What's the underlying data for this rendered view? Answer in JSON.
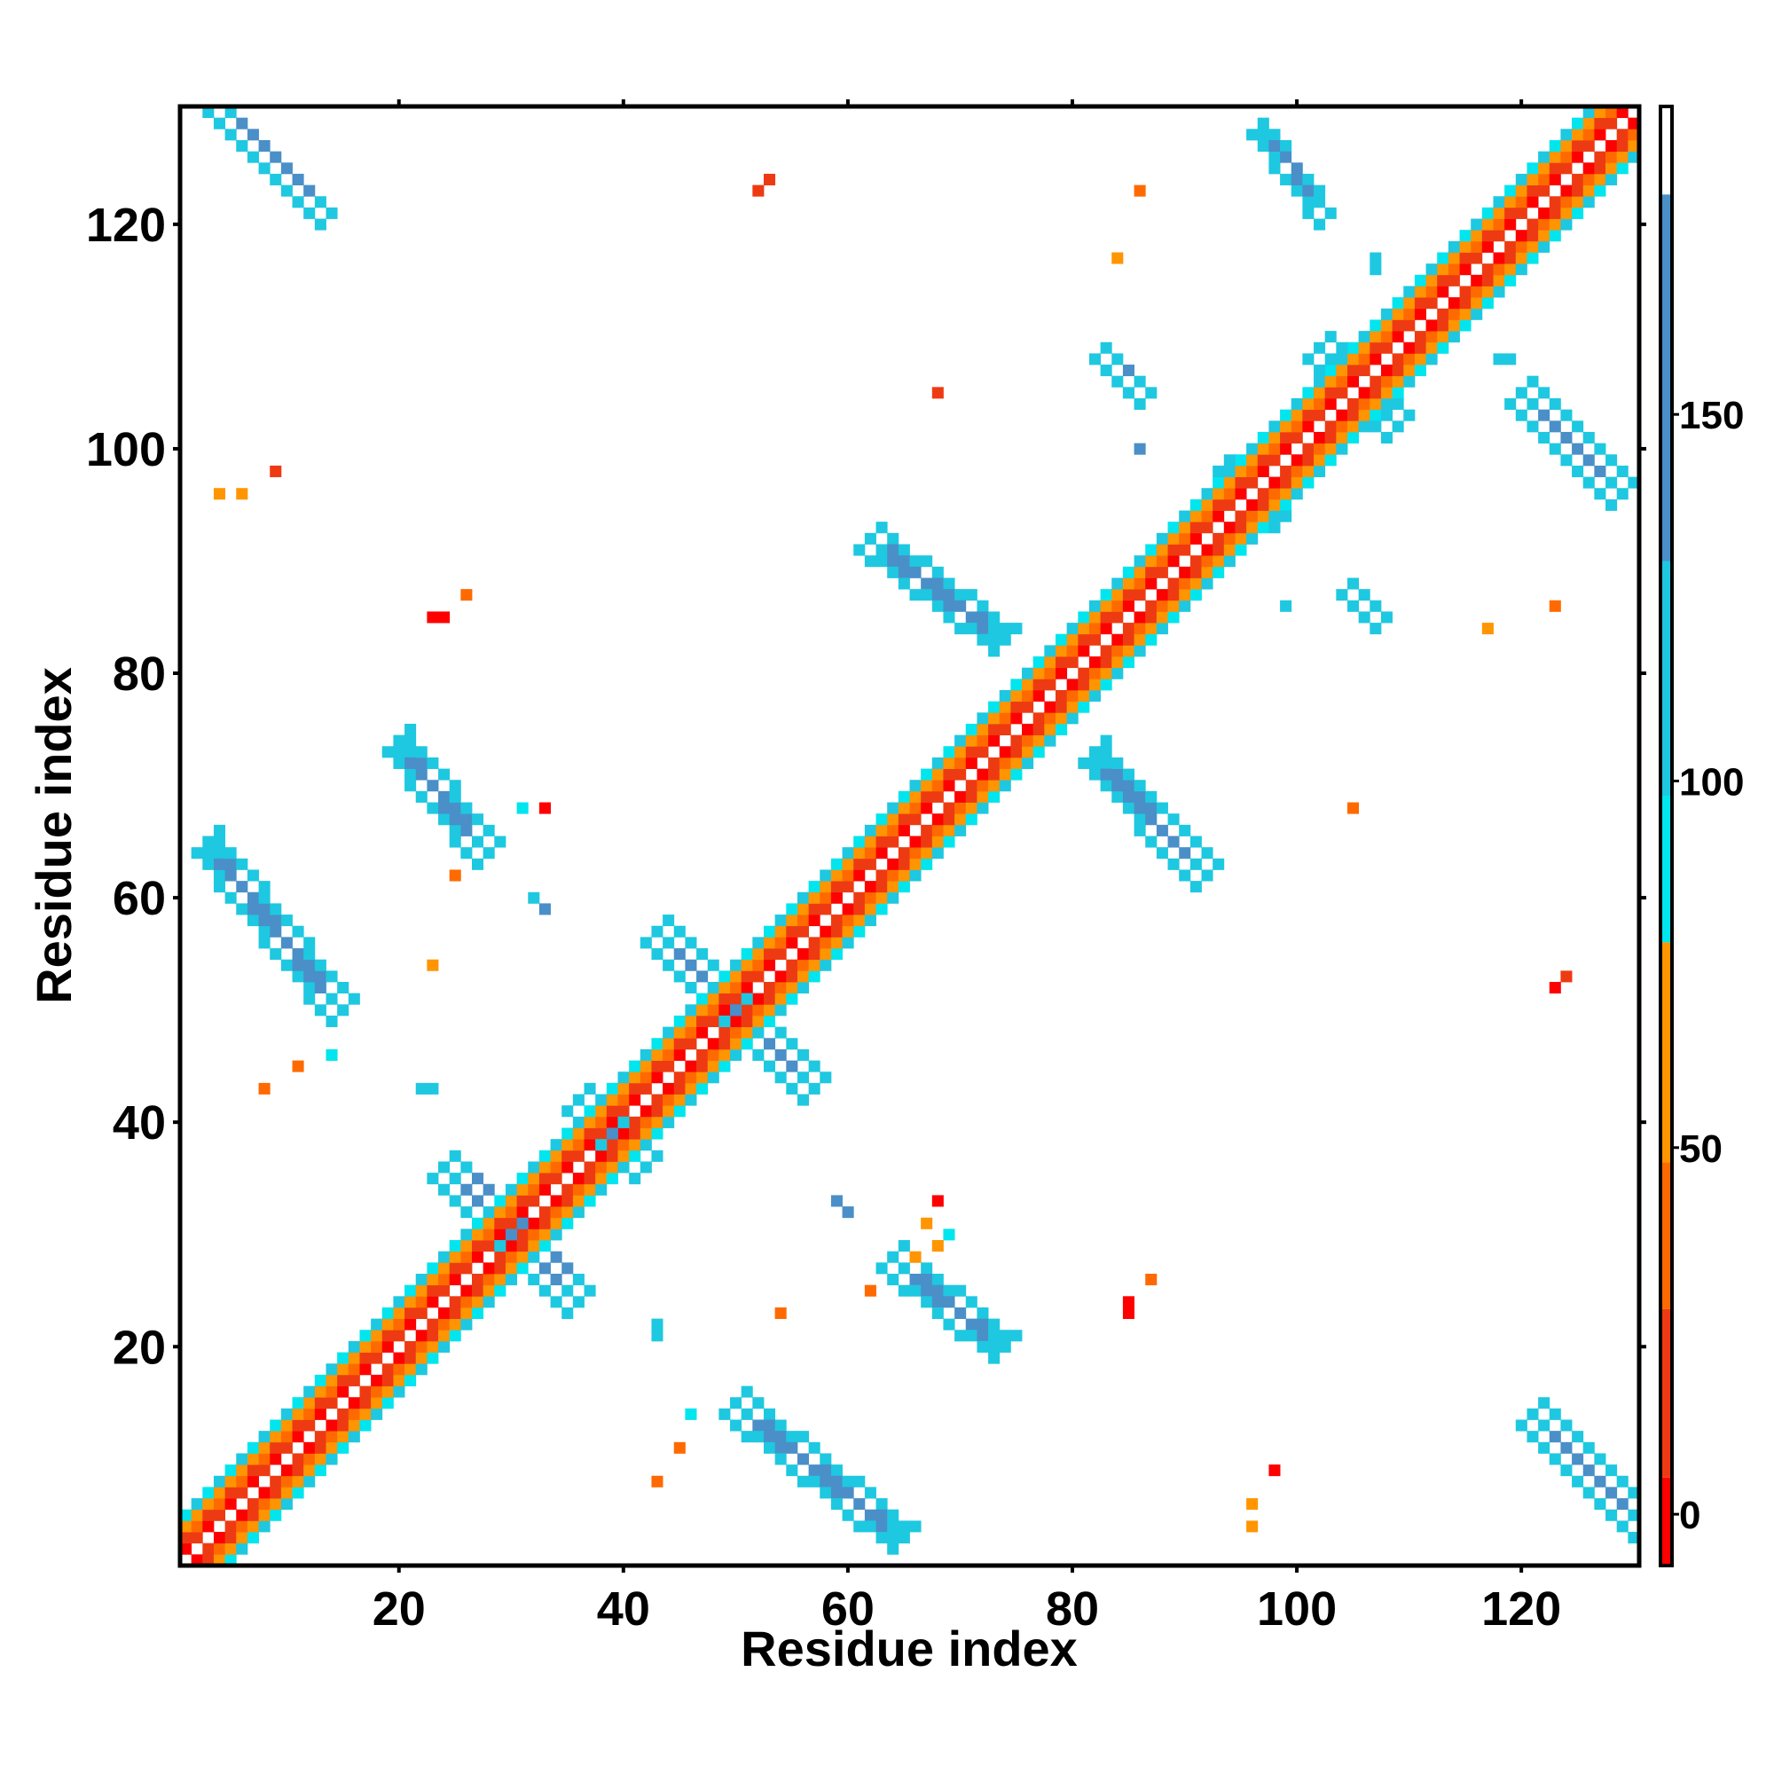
{
  "chart_data": {
    "type": "heatmap",
    "title": "",
    "xlabel": "Residue index",
    "ylabel": "Residue index",
    "xlim": [
      0.5,
      130.5
    ],
    "ylim": [
      0.5,
      130.5
    ],
    "x_ticks": [
      20,
      40,
      60,
      80,
      100,
      120
    ],
    "y_ticks": [
      20,
      40,
      60,
      80,
      100,
      120
    ],
    "colorbar": {
      "ticks": [
        0,
        50,
        100,
        150
      ],
      "range": [
        -7,
        192
      ],
      "bands": [
        {
          "from": -7,
          "to": 5,
          "color": "#ff0000"
        },
        {
          "from": 5,
          "to": 28,
          "color": "#ee3a12"
        },
        {
          "from": 28,
          "to": 48,
          "color": "#ff6a00"
        },
        {
          "from": 48,
          "to": 78,
          "color": "#ff9500"
        },
        {
          "from": 78,
          "to": 98,
          "color": "#00e5ee"
        },
        {
          "from": 98,
          "to": 130,
          "color": "#1ec8e0"
        },
        {
          "from": 130,
          "to": 180,
          "color": "#4a8fc8"
        },
        {
          "from": 180,
          "to": 192,
          "color": "#ffffff"
        }
      ]
    },
    "legend": "right colorbar",
    "grid": false,
    "diagonal": {
      "from": 1,
      "to": 130
    },
    "strands": [
      {
        "x1": 3,
        "y1": 130,
        "x2": 13,
        "y2": 120,
        "width": 3
      },
      {
        "x1": 2,
        "y1": 64,
        "x2": 14,
        "y2": 49,
        "width": 4
      },
      {
        "x1": 19,
        "y1": 73,
        "x2": 27,
        "y2": 63,
        "width": 4
      },
      {
        "x1": 23,
        "y1": 35,
        "x2": 35,
        "y2": 23,
        "width": 5
      },
      {
        "x1": 35,
        "y1": 41,
        "x2": 41,
        "y2": 35,
        "width": 4
      },
      {
        "x1": 42,
        "y1": 56,
        "x2": 56,
        "y2": 42,
        "width": 4
      },
      {
        "x1": 49,
        "y1": 14,
        "x2": 64,
        "y2": 2,
        "width": 4
      },
      {
        "x1": 63,
        "y1": 27,
        "x2": 73,
        "y2": 19,
        "width": 4
      },
      {
        "x1": 61,
        "y1": 91,
        "x2": 73,
        "y2": 82,
        "width": 4
      },
      {
        "x1": 81,
        "y1": 72,
        "x2": 91,
        "y2": 61,
        "width": 4
      },
      {
        "x1": 82,
        "y1": 108,
        "x2": 86,
        "y2": 104,
        "width": 3
      },
      {
        "x1": 93,
        "y1": 98,
        "x2": 98,
        "y2": 93,
        "width": 3
      },
      {
        "x1": 96,
        "y1": 128,
        "x2": 102,
        "y2": 120,
        "width": 3
      },
      {
        "x1": 101,
        "y1": 108,
        "x2": 108,
        "y2": 101,
        "width": 4
      },
      {
        "x1": 104,
        "y1": 87,
        "x2": 107,
        "y2": 84,
        "width": 3
      },
      {
        "x1": 119,
        "y1": 104,
        "x2": 128,
        "y2": 95,
        "width": 4
      },
      {
        "x1": 120,
        "y1": 13,
        "x2": 130,
        "y2": 3,
        "width": 4
      }
    ],
    "points": [
      {
        "x": 53,
        "y": 124,
        "v": 20
      },
      {
        "x": 52,
        "y": 123,
        "v": 20
      },
      {
        "x": 86,
        "y": 123,
        "v": 40
      },
      {
        "x": 84,
        "y": 117,
        "v": 60
      },
      {
        "x": 107,
        "y": 117,
        "v": 110
      },
      {
        "x": 107,
        "y": 116,
        "v": 110
      },
      {
        "x": 68,
        "y": 105,
        "v": 20
      },
      {
        "x": 86,
        "y": 100,
        "v": 140
      },
      {
        "x": 9,
        "y": 98,
        "v": 20
      },
      {
        "x": 4,
        "y": 96,
        "v": 60
      },
      {
        "x": 6,
        "y": 96,
        "v": 60
      },
      {
        "x": 26,
        "y": 87,
        "v": 30
      },
      {
        "x": 23,
        "y": 85,
        "v": 0
      },
      {
        "x": 24,
        "y": 85,
        "v": 0
      },
      {
        "x": 99,
        "y": 86,
        "v": 110
      },
      {
        "x": 123,
        "y": 86,
        "v": 40
      },
      {
        "x": 117,
        "y": 84,
        "v": 60
      },
      {
        "x": 33,
        "y": 68,
        "v": 0
      },
      {
        "x": 31,
        "y": 68,
        "v": 90
      },
      {
        "x": 105,
        "y": 68,
        "v": 30
      },
      {
        "x": 25,
        "y": 62,
        "v": 40
      },
      {
        "x": 32,
        "y": 60,
        "v": 110
      },
      {
        "x": 33,
        "y": 59,
        "v": 140
      },
      {
        "x": 23,
        "y": 54,
        "v": 60
      },
      {
        "x": 124,
        "y": 53,
        "v": 20
      },
      {
        "x": 123,
        "y": 52,
        "v": 0
      },
      {
        "x": 14,
        "y": 46,
        "v": 90
      },
      {
        "x": 11,
        "y": 45,
        "v": 30
      },
      {
        "x": 8,
        "y": 43,
        "v": 40
      },
      {
        "x": 22,
        "y": 43,
        "v": 110
      },
      {
        "x": 23,
        "y": 43,
        "v": 110
      },
      {
        "x": 68,
        "y": 33,
        "v": 0
      },
      {
        "x": 59,
        "y": 33,
        "v": 140
      },
      {
        "x": 60,
        "y": 32,
        "v": 140
      },
      {
        "x": 87,
        "y": 26,
        "v": 30
      },
      {
        "x": 62,
        "y": 25,
        "v": 40
      },
      {
        "x": 85,
        "y": 24,
        "v": 0
      },
      {
        "x": 85,
        "y": 23,
        "v": 0
      },
      {
        "x": 54,
        "y": 23,
        "v": 40
      },
      {
        "x": 43,
        "y": 22,
        "v": 110
      },
      {
        "x": 43,
        "y": 21,
        "v": 110
      },
      {
        "x": 46,
        "y": 14,
        "v": 90
      },
      {
        "x": 45,
        "y": 11,
        "v": 30
      },
      {
        "x": 98,
        "y": 9,
        "v": 0
      },
      {
        "x": 43,
        "y": 8,
        "v": 30
      },
      {
        "x": 96,
        "y": 6,
        "v": 60
      },
      {
        "x": 96,
        "y": 4,
        "v": 60
      },
      {
        "x": 67,
        "y": 31,
        "v": 60
      },
      {
        "x": 68,
        "y": 29,
        "v": 60
      },
      {
        "x": 66,
        "y": 28,
        "v": 60
      },
      {
        "x": 69,
        "y": 30,
        "v": 90
      },
      {
        "x": 118,
        "y": 108,
        "v": 110
      },
      {
        "x": 119,
        "y": 108,
        "v": 110
      }
    ]
  }
}
